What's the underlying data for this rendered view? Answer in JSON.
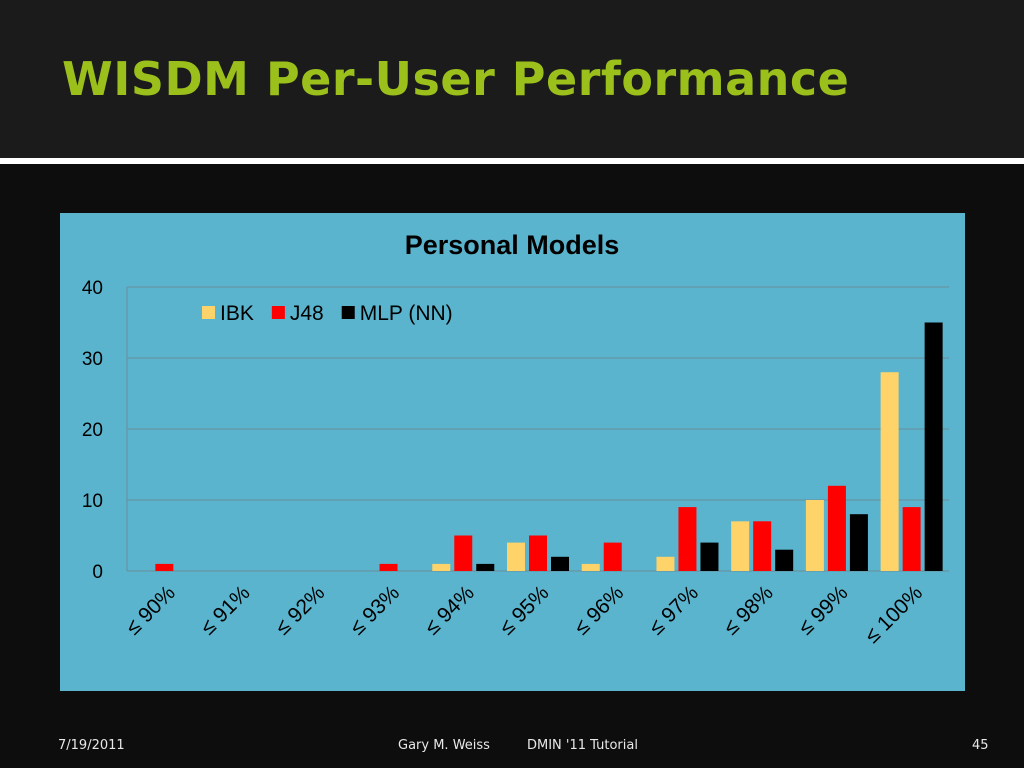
{
  "slide": {
    "title": "WISDM Per-User Performance",
    "footer": {
      "date": "7/19/2011",
      "presenter": "Gary M. Weiss",
      "event": "DMIN '11 Tutorial",
      "page": "45"
    }
  },
  "colors": {
    "background": "#0d0d0d",
    "title_band": "#1b1b1b",
    "title": "#9bc01c",
    "chart_bg": "#5ab4cd"
  },
  "chart_data": {
    "type": "bar",
    "title": "Personal Models",
    "xlabel": "",
    "ylabel": "",
    "categories": [
      "≤ 90%",
      "≤ 91%",
      "≤ 92%",
      "≤ 93%",
      "≤ 94%",
      "≤ 95%",
      "≤ 96%",
      "≤ 97%",
      "≤ 98%",
      "≤ 99%",
      "≤ 100%"
    ],
    "series": [
      {
        "name": "IBK",
        "color": "#fdd36a",
        "values": [
          0,
          0,
          0,
          0,
          1,
          4,
          1,
          2,
          7,
          10,
          28
        ]
      },
      {
        "name": "J48",
        "color": "#ff0000",
        "values": [
          1,
          0,
          0,
          1,
          5,
          5,
          4,
          9,
          7,
          12,
          9
        ]
      },
      {
        "name": "MLP (NN)",
        "color": "#000000",
        "values": [
          0,
          0,
          0,
          0,
          1,
          2,
          0,
          4,
          3,
          8,
          35
        ]
      }
    ],
    "ylim": [
      0,
      40
    ],
    "yticks": [
      0,
      10,
      20,
      30,
      40
    ],
    "grid": true,
    "legend": "top-left"
  }
}
